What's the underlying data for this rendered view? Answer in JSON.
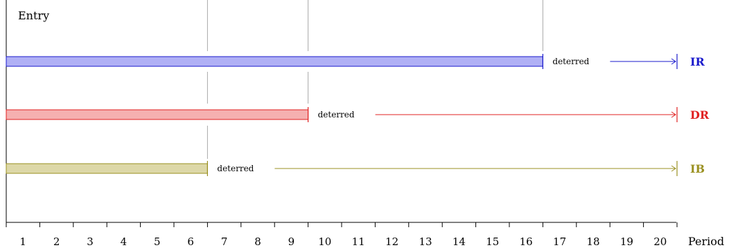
{
  "chart_data": {
    "type": "bar",
    "orientation": "horizontal",
    "ylabel": "Entry",
    "xlabel": "Period",
    "xlim": [
      0,
      20
    ],
    "ticks": [
      "1",
      "2",
      "3",
      "4",
      "5",
      "6",
      "7",
      "8",
      "9",
      "10",
      "11",
      "12",
      "13",
      "14",
      "15",
      "16",
      "17",
      "18",
      "19",
      "20"
    ],
    "end": 20,
    "deferred_label": "deterred",
    "series": [
      {
        "name": "IR",
        "value": 16,
        "color": "#1a1acc",
        "fill": "#b0b0f5"
      },
      {
        "name": "DR",
        "value": 9,
        "color": "#e02020",
        "fill": "#f5b0b0"
      },
      {
        "name": "IB",
        "value": 6,
        "color": "#9a9020",
        "fill": "#ddd8a8"
      }
    ],
    "grid": "vertical lines at bar ends"
  }
}
